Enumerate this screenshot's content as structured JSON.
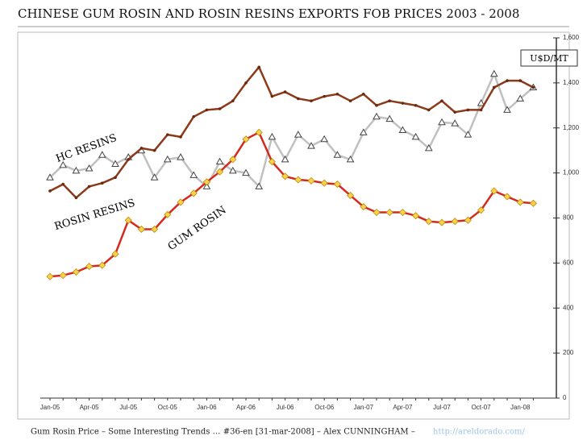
{
  "chart_data": {
    "type": "line",
    "title": "CHINESE GUM ROSIN AND ROSIN RESINS EXPORTS FOB PRICES 2003 - 2008",
    "footer": "Gum Rosin Price – Some Interesting Trends … #36-en [31-mar-2008] – Alex CUNNINGHAM –",
    "footer_link": "http://areldorado.com/",
    "y_unit": "U$D/MT",
    "annotations": [
      "HC RESINS",
      "ROSIN RESINS",
      "GUM ROSIN"
    ],
    "categories": [
      "Jan-05",
      null,
      null,
      "Apr-05",
      null,
      null,
      "Jul-05",
      null,
      null,
      "Oct-05",
      null,
      null,
      "Jan-06",
      null,
      null,
      "Apr-06",
      null,
      null,
      "Jul-06",
      null,
      null,
      "Oct-06",
      null,
      null,
      "Jan-07",
      null,
      null,
      "Apr-07",
      null,
      null,
      "Jul-07",
      null,
      null,
      "Oct-07",
      null,
      null,
      "Jan-08",
      null
    ],
    "ylim": [
      0,
      1600
    ],
    "yticks": [
      0,
      200,
      400,
      600,
      800,
      {
        "value": 1000,
        "label": "1,000"
      },
      {
        "value": 1200,
        "label": "1,200"
      },
      {
        "value": 1400,
        "label": "1,400"
      },
      {
        "value": 1600,
        "label": "1,600"
      }
    ],
    "series": [
      {
        "name": "HC RESINS",
        "color": "#c0c0c0",
        "marker": "triangle",
        "values": [
          980,
          1035,
          1010,
          1020,
          1080,
          1040,
          1070,
          1100,
          980,
          1060,
          1070,
          990,
          940,
          1050,
          1010,
          1000,
          940,
          1160,
          1060,
          1170,
          1120,
          1150,
          1080,
          1060,
          1180,
          1250,
          1240,
          1190,
          1160,
          1110,
          1225,
          1220,
          1170,
          1310,
          1440,
          1280,
          1330,
          1380
        ]
      },
      {
        "name": "ROSIN RESINS",
        "color": "#8b3a1a",
        "marker": "dot",
        "values": [
          920,
          950,
          890,
          940,
          955,
          980,
          1060,
          1110,
          1100,
          1170,
          1160,
          1250,
          1280,
          1285,
          1320,
          1400,
          1470,
          1340,
          1360,
          1330,
          1320,
          1340,
          1350,
          1320,
          1350,
          1300,
          1320,
          1310,
          1300,
          1280,
          1320,
          1270,
          1280,
          1280,
          1380,
          1410,
          1410,
          1380
        ]
      },
      {
        "name": "GUM ROSIN",
        "color": "#d42a1e",
        "marker": "diamond",
        "values": [
          540,
          545,
          560,
          585,
          590,
          640,
          790,
          750,
          750,
          815,
          870,
          910,
          960,
          1005,
          1060,
          1150,
          1180,
          1050,
          985,
          970,
          965,
          955,
          950,
          900,
          850,
          825,
          825,
          825,
          810,
          785,
          780,
          785,
          790,
          835,
          920,
          895,
          870,
          865
        ]
      }
    ]
  }
}
